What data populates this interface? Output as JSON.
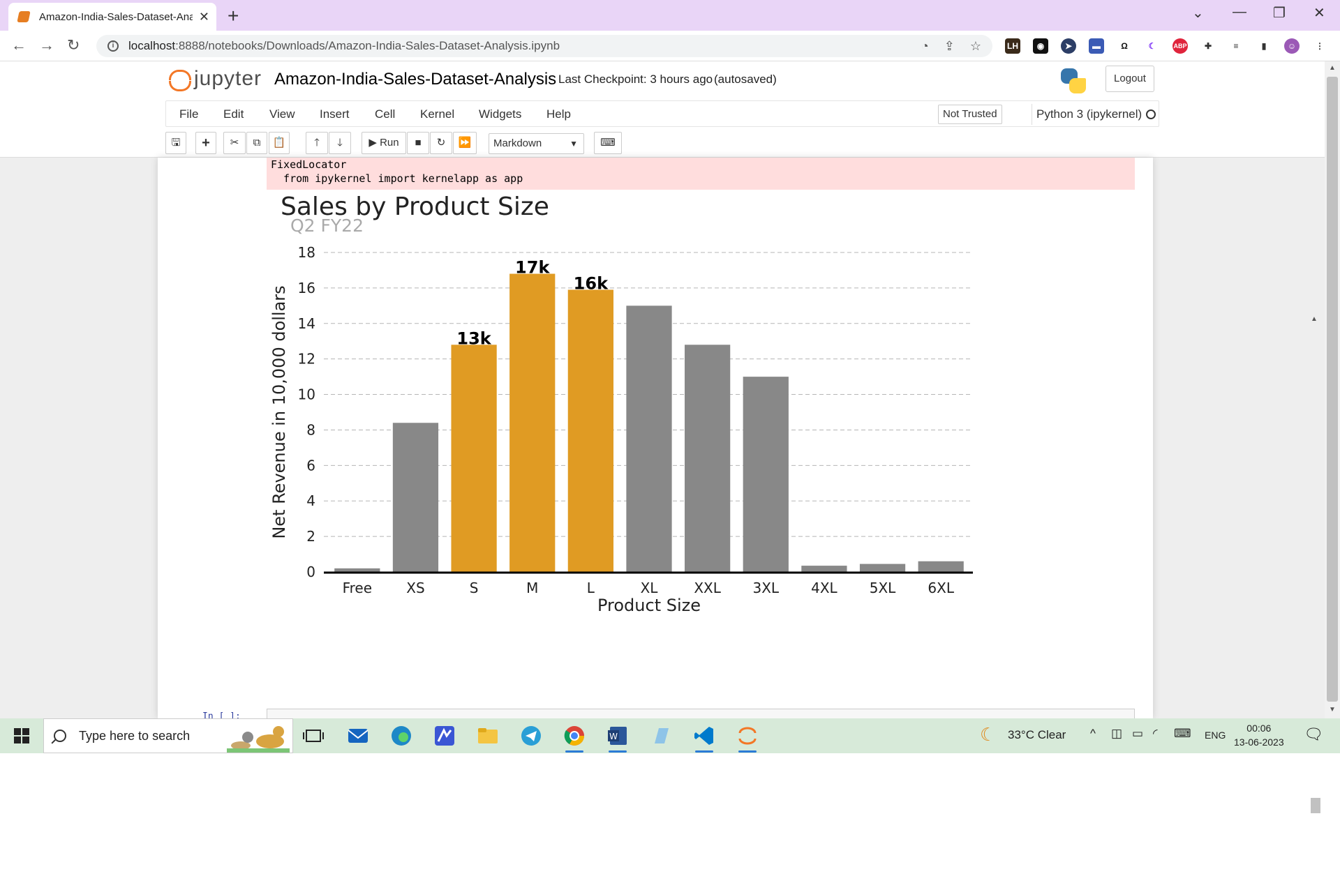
{
  "browser": {
    "tab_title": "Amazon-India-Sales-Dataset-Ana",
    "url_host": "localhost",
    "url_rest": ":8888/notebooks/Downloads/Amazon-India-Sales-Dataset-Analysis.ipynb"
  },
  "jupyter": {
    "logo_text": "jupyter",
    "notebook_title": "Amazon-India-Sales-Dataset-Analysis",
    "checkpoint": "Last Checkpoint: 3 hours ago",
    "autosaved": "(autosaved)",
    "logout_label": "Logout",
    "menu": [
      "File",
      "Edit",
      "View",
      "Insert",
      "Cell",
      "Kernel",
      "Widgets",
      "Help"
    ],
    "trust_label": "Not Trusted",
    "kernel_label": "Python 3 (ipykernel)",
    "run_label": "Run",
    "cell_type": "Markdown"
  },
  "output": {
    "stderr_line1": "FixedLocator",
    "stderr_line2": "  from ipykernel import kernelapp as app"
  },
  "chart_data": {
    "type": "bar",
    "title": "Sales by Product Size",
    "subtitle": "Q2 FY22",
    "xlabel": "Product Size",
    "ylabel": "Net Revenue in 10,000 dollars",
    "ylim": [
      0,
      18
    ],
    "yticks": [
      0,
      2,
      4,
      6,
      8,
      10,
      12,
      14,
      16,
      18
    ],
    "grid": "horizontal dashed",
    "categories": [
      "Free",
      "XS",
      "S",
      "M",
      "L",
      "XL",
      "XXL",
      "3XL",
      "4XL",
      "5XL",
      "6XL"
    ],
    "values": [
      0.2,
      8.4,
      12.8,
      16.8,
      15.9,
      15.0,
      12.8,
      11.0,
      0.35,
      0.45,
      0.6
    ],
    "highlight": [
      false,
      false,
      true,
      true,
      true,
      false,
      false,
      false,
      false,
      false,
      false
    ],
    "bar_labels": [
      "",
      "",
      "13k",
      "17k",
      "16k",
      "",
      "",
      "",
      "",
      "",
      ""
    ],
    "colors": {
      "highlight": "#e09b23",
      "default": "#888888",
      "axis": "#000000"
    }
  },
  "taskbar": {
    "search_placeholder": "Type here to search",
    "weather": "33°C  Clear",
    "language": "ENG",
    "time": "00:06",
    "date": "13-06-2023"
  }
}
